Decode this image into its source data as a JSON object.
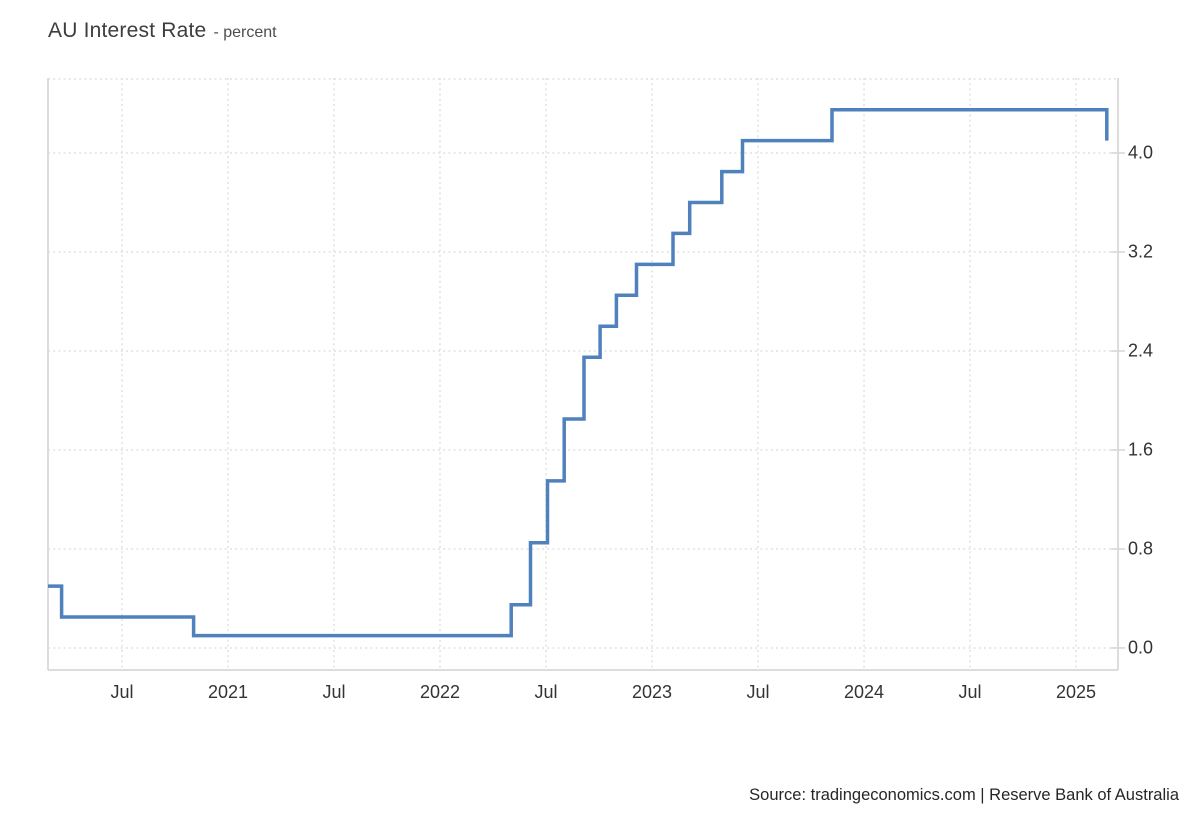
{
  "header": {
    "title": "AU Interest Rate",
    "subtitle": "- percent"
  },
  "footer": {
    "source": "Source: tradingeconomics.com | Reserve Bank of Australia"
  },
  "colors": {
    "line": "#4f81bd",
    "grid": "#e1e1e1",
    "border": "#d8d8d8",
    "label_text": "#333333"
  },
  "chart_data": {
    "type": "line",
    "subtype": "step",
    "title": "AU Interest Rate",
    "ylabel": "percent",
    "xlabel": "",
    "legend_position": "none",
    "grid": "dotted",
    "x_axis": {
      "min": 2020.151,
      "max": 2025.198,
      "ticks": [
        {
          "pos": 2020.5,
          "label": "Jul"
        },
        {
          "pos": 2021.0,
          "label": "2021"
        },
        {
          "pos": 2021.5,
          "label": "Jul"
        },
        {
          "pos": 2022.0,
          "label": "2022"
        },
        {
          "pos": 2022.5,
          "label": "Jul"
        },
        {
          "pos": 2023.0,
          "label": "2023"
        },
        {
          "pos": 2023.5,
          "label": "Jul"
        },
        {
          "pos": 2024.0,
          "label": "2024"
        },
        {
          "pos": 2024.5,
          "label": "Jul"
        },
        {
          "pos": 2025.0,
          "label": "2025"
        }
      ]
    },
    "y_axis": {
      "min": -0.178,
      "max": 4.606,
      "ticks": [
        {
          "value": 0.0,
          "label": "0.0"
        },
        {
          "value": 0.8,
          "label": "0.8"
        },
        {
          "value": 1.6,
          "label": "1.6"
        },
        {
          "value": 2.4,
          "label": "2.4"
        },
        {
          "value": 3.2,
          "label": "3.2"
        },
        {
          "value": 4.0,
          "label": "4.0"
        }
      ]
    },
    "series": [
      {
        "name": "AU Interest Rate",
        "unit": "percent",
        "points": [
          {
            "date": "2020-03",
            "x": 2020.151,
            "value": 0.5
          },
          {
            "date": "2020-03",
            "x": 2020.215,
            "value": 0.25
          },
          {
            "date": "2020-11",
            "x": 2020.838,
            "value": 0.1
          },
          {
            "date": "2022-05",
            "x": 2022.336,
            "value": 0.35
          },
          {
            "date": "2022-06",
            "x": 2022.427,
            "value": 0.85
          },
          {
            "date": "2022-07",
            "x": 2022.507,
            "value": 1.35
          },
          {
            "date": "2022-08",
            "x": 2022.586,
            "value": 1.85
          },
          {
            "date": "2022-09",
            "x": 2022.679,
            "value": 2.35
          },
          {
            "date": "2022-10",
            "x": 2022.755,
            "value": 2.6
          },
          {
            "date": "2022-11",
            "x": 2022.832,
            "value": 2.85
          },
          {
            "date": "2022-12",
            "x": 2022.927,
            "value": 3.1
          },
          {
            "date": "2023-02",
            "x": 2023.099,
            "value": 3.35
          },
          {
            "date": "2023-03",
            "x": 2023.178,
            "value": 3.6
          },
          {
            "date": "2023-05",
            "x": 2023.329,
            "value": 3.85
          },
          {
            "date": "2023-06",
            "x": 2023.427,
            "value": 4.1
          },
          {
            "date": "2023-11",
            "x": 2023.849,
            "value": 4.35
          },
          {
            "date": "2025-02",
            "x": 2025.145,
            "value": 4.1
          }
        ]
      }
    ]
  }
}
